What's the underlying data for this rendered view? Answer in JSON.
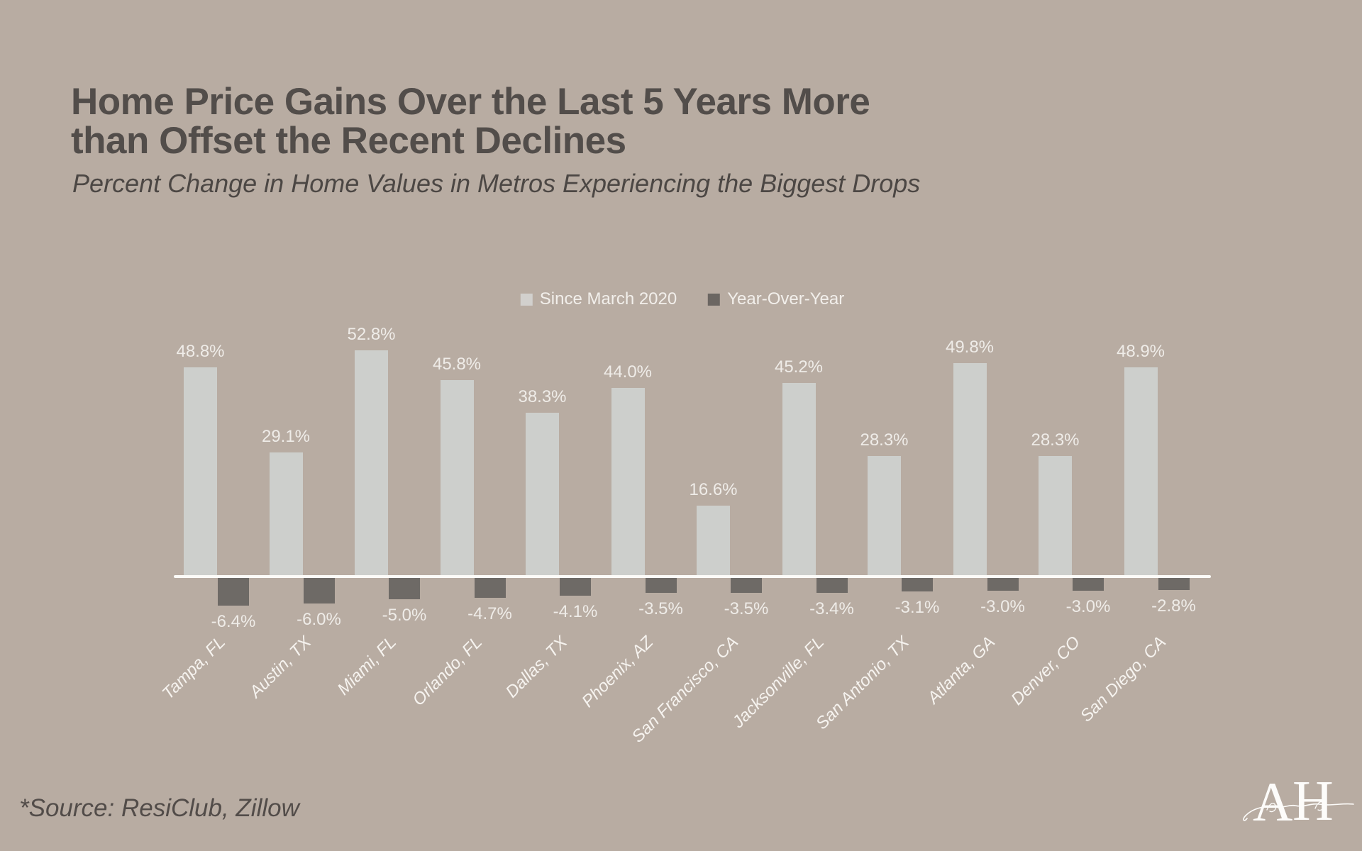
{
  "colors": {
    "background": "#b8aca2",
    "title_text": "#524d4a",
    "subtitle_text": "#4c4744",
    "bar_positive": "#cdcfcc",
    "bar_negative": "#6e6a66",
    "legend_swatch_positive": "#d2d0cd",
    "legend_swatch_negative": "#6b6662",
    "axis_line": "#fcfbf8",
    "light_text": "#f2efeb"
  },
  "header": {
    "title_line1": "Home Price Gains Over the Last 5 Years More",
    "title_line2": "than Offset the Recent Declines",
    "subtitle": "Percent Change in Home Values in Metros Experiencing the Biggest Drops"
  },
  "chart_data": {
    "type": "bar",
    "categories": [
      "Tampa, FL",
      "Austin, TX",
      "Miami, FL",
      "Orlando, FL",
      "Dallas, TX",
      "Phoenix, AZ",
      "San Francisco, CA",
      "Jacksonville, FL",
      "San Antonio, TX",
      "Atlanta, GA",
      "Denver, CO",
      "San Diego, CA"
    ],
    "series": [
      {
        "name": "Since March 2020",
        "color": "#cdcfcc",
        "values": [
          48.8,
          29.1,
          52.8,
          45.8,
          38.3,
          44.0,
          16.6,
          45.2,
          28.3,
          49.8,
          28.3,
          48.9
        ]
      },
      {
        "name": "Year-Over-Year",
        "color": "#6e6a66",
        "values": [
          -6.4,
          -6.0,
          -5.0,
          -4.7,
          -4.1,
          -3.5,
          -3.5,
          -3.4,
          -3.1,
          -3.0,
          -3.0,
          -2.8
        ]
      }
    ],
    "value_label_suffix": "%",
    "value_label_decimals": 1,
    "ylim": [
      -10,
      60
    ],
    "grid": false,
    "legend_position": "top-center",
    "baseline": 0
  },
  "footer": {
    "source_note": "*Source: ResiClub, Zillow"
  },
  "logo": {
    "letter_a": "A",
    "letter_h": "H"
  }
}
